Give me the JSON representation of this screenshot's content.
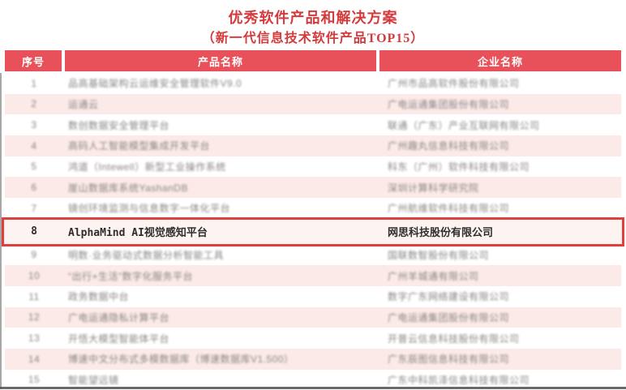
{
  "page": {
    "title": "优秀软件产品和解决方案",
    "subtitle": "（新一代信息技术软件产品TOP15）"
  },
  "colors": {
    "title_red": "#d43a3c",
    "header_red": "#e8505a",
    "stripe_pink": "#fbeae8",
    "highlight_border_red": "#df403e",
    "highlight_bg": "#fdf4f2"
  },
  "table": {
    "columns": [
      "序号",
      "产品名称",
      "企业名称"
    ],
    "rows": [
      {
        "num": "1",
        "product": "品高基础架构云运维安全管理软件V9.0",
        "company": "广州市品高软件股份有限公司",
        "highlighted": false,
        "blurred": true
      },
      {
        "num": "2",
        "product": "运通云",
        "company": "广电运通集团股份有限公司",
        "highlighted": false,
        "blurred": true
      },
      {
        "num": "3",
        "product": "数创数据安全管理平台",
        "company": "联通（广东）产业互联网有限公司",
        "highlighted": false,
        "blurred": true
      },
      {
        "num": "4",
        "product": "高码人工智能模型集成开发平台",
        "company": "广州趣丸信息科技有限公司",
        "highlighted": false,
        "blurred": true
      },
      {
        "num": "5",
        "product": "鸿道（Intewell）新型工业操作系统",
        "company": "科东（广州）软件科技有限公司",
        "highlighted": false,
        "blurred": true
      },
      {
        "num": "6",
        "product": "崖山数据库系统YashanDB",
        "company": "深圳计算科学研究院",
        "highlighted": false,
        "blurred": true
      },
      {
        "num": "7",
        "product": "镜创环境监测与信息数字一体化平台",
        "company": "广州航维软件科技有限公司",
        "highlighted": false,
        "blurred": true
      },
      {
        "num": "8",
        "product": "AlphaMind AI视觉感知平台",
        "company": "网思科技股份有限公司",
        "highlighted": true,
        "blurred": false
      },
      {
        "num": "9",
        "product": "明数·业务驱动式数据分析智能工具",
        "company": "国联数智股份有限公司",
        "highlighted": false,
        "blurred": true
      },
      {
        "num": "10",
        "product": "“出行+生活”数字化服务平台",
        "company": "广州羊城通有限公司",
        "highlighted": false,
        "blurred": true
      },
      {
        "num": "11",
        "product": "政务数据中台",
        "company": "数字广东网络建设有限公司",
        "highlighted": false,
        "blurred": true
      },
      {
        "num": "12",
        "product": "广电运通隐私计算平台",
        "company": "广电运通集团股份有限公司",
        "highlighted": false,
        "blurred": true
      },
      {
        "num": "13",
        "product": "开悟大模型智能体平台",
        "company": "开普云信息科技股份有限公司",
        "highlighted": false,
        "blurred": true
      },
      {
        "num": "14",
        "product": "博速中文分布式多模数据库（博速数据库V1.500）",
        "company": "广东辰图信息科技有限公司",
        "highlighted": false,
        "blurred": true
      },
      {
        "num": "15",
        "product": "智能望远镜",
        "company": "广东中科凯泽信息科技有限公司",
        "highlighted": false,
        "blurred": true
      }
    ]
  }
}
